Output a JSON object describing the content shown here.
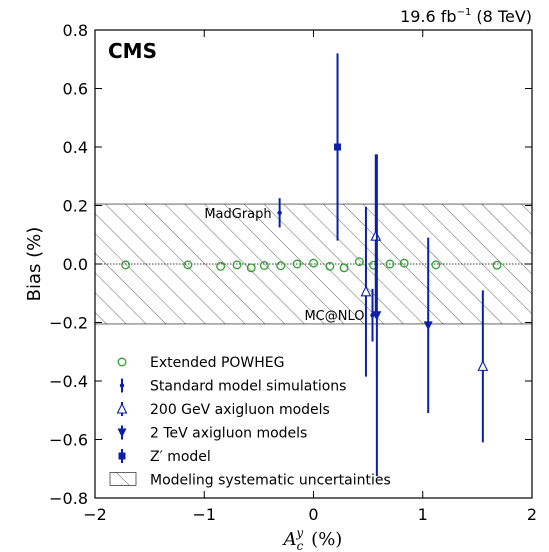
{
  "header": {
    "lumi": "19.6 fb",
    "lumi_exp": "−1",
    "energy": "(8 TeV)",
    "experiment": "CMS"
  },
  "chart_data": {
    "type": "scatter",
    "xlabel_symbol": "A",
    "xlabel_sub": "c",
    "xlabel_sup": "y",
    "xlabel_unit": "(%)",
    "ylabel": "Bias (%)",
    "xlim": [
      -2,
      2
    ],
    "ylim": [
      -0.8,
      0.8
    ],
    "x_ticks": [
      -2,
      -1,
      0,
      1,
      2
    ],
    "x_tick_labels": [
      "−2",
      "−1",
      "0",
      "1",
      "2"
    ],
    "y_ticks": [
      -0.8,
      -0.6,
      -0.4,
      -0.2,
      0.0,
      0.2,
      0.4,
      0.6,
      0.8
    ],
    "y_tick_labels": [
      "−0.8",
      "−0.6",
      "−0.4",
      "−0.2",
      "0.0",
      "0.2",
      "0.4",
      "0.6",
      "0.8"
    ],
    "grid": false,
    "legend_position": "lower-left",
    "systematic_band": [
      -0.205,
      0.205
    ],
    "reference_line": 0.0,
    "colors": {
      "powheg": "#2ca02c",
      "models": "#0b1fa8",
      "band_hatch": "#555555"
    },
    "series": [
      {
        "name": "Extended POWHEG",
        "marker": "circle",
        "points": [
          {
            "x": -1.72,
            "y": -0.003
          },
          {
            "x": -1.15,
            "y": -0.003
          },
          {
            "x": -0.85,
            "y": -0.008
          },
          {
            "x": -0.7,
            "y": -0.003
          },
          {
            "x": -0.57,
            "y": -0.013
          },
          {
            "x": -0.45,
            "y": -0.005
          },
          {
            "x": -0.3,
            "y": -0.006
          },
          {
            "x": -0.15,
            "y": 0.0
          },
          {
            "x": 0.0,
            "y": 0.003
          },
          {
            "x": 0.15,
            "y": -0.008
          },
          {
            "x": 0.28,
            "y": -0.013
          },
          {
            "x": 0.42,
            "y": 0.008
          },
          {
            "x": 0.55,
            "y": -0.004
          },
          {
            "x": 0.7,
            "y": 0.0
          },
          {
            "x": 0.83,
            "y": 0.003
          },
          {
            "x": 1.12,
            "y": -0.003
          },
          {
            "x": 1.68,
            "y": -0.004
          }
        ]
      },
      {
        "name": "Standard model simulations",
        "marker": "dot",
        "points": [
          {
            "x": -0.31,
            "y": 0.175,
            "err": 0.05,
            "label": "MadGraph"
          },
          {
            "x": 0.54,
            "y": -0.175,
            "err": 0.09,
            "label": "MC@NLO"
          }
        ]
      },
      {
        "name": "200 GeV axigluon models",
        "marker": "triangle-up-open",
        "points": [
          {
            "x": 0.48,
            "y": -0.095,
            "err": 0.29
          },
          {
            "x": 0.57,
            "y": 0.095,
            "err": 0.28
          },
          {
            "x": 1.55,
            "y": -0.35,
            "err": 0.26
          }
        ]
      },
      {
        "name": "2 TeV axigluon models",
        "marker": "triangle-down",
        "points": [
          {
            "x": 0.58,
            "y": -0.175,
            "err": 0.55
          },
          {
            "x": 1.05,
            "y": -0.21,
            "err": 0.3
          }
        ]
      },
      {
        "name": "Z′ model",
        "marker": "square",
        "points": [
          {
            "x": 0.22,
            "y": 0.4,
            "err": 0.32
          }
        ]
      }
    ],
    "legend": [
      {
        "marker": "circle",
        "label": "Extended POWHEG"
      },
      {
        "marker": "dot",
        "label": "Standard model simulations"
      },
      {
        "marker": "triangle-up-open",
        "label": "200 GeV axigluon models"
      },
      {
        "marker": "triangle-down",
        "label": "2 TeV axigluon models"
      },
      {
        "marker": "square",
        "label": "Z′ model"
      },
      {
        "marker": "hatch",
        "label": "Modeling systematic uncertainties"
      }
    ]
  }
}
